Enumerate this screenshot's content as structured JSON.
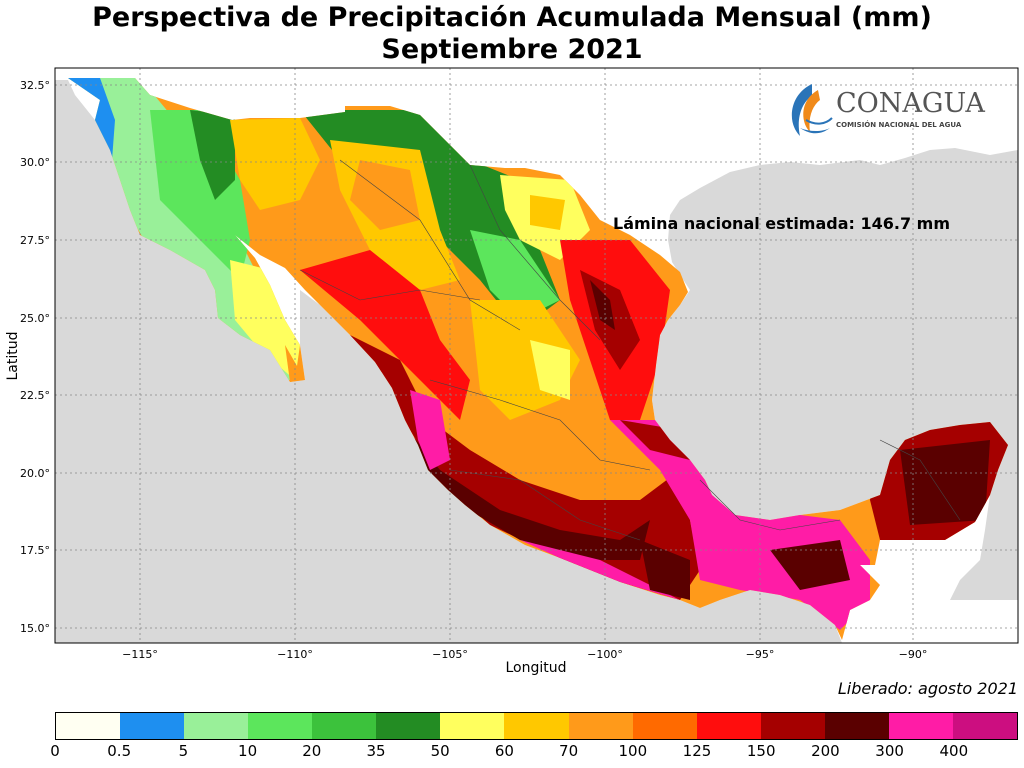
{
  "title_line1": "Perspectiva de Precipitación Acumulada Mensual (mm)",
  "title_line2": "Septiembre 2021",
  "logo": {
    "name": "CONAGUA",
    "subtitle": "COMISIÓN NACIONAL DEL AGUA"
  },
  "annotation": "Lámina nacional estimada: 146.7 mm",
  "released": "Liberado: agosto 2021",
  "axes": {
    "xlabel": "Longitud",
    "ylabel": "Latitud",
    "x_ticks": [
      "−115°",
      "−110°",
      "−105°",
      "−100°",
      "−95°",
      "−90°"
    ],
    "y_ticks": [
      "32.5°",
      "30.0°",
      "27.5°",
      "25.0°",
      "22.5°",
      "20.0°",
      "17.5°",
      "15.0°"
    ]
  },
  "colorbar": {
    "tick_labels": [
      "0",
      "0.5",
      "5",
      "10",
      "20",
      "35",
      "50",
      "60",
      "70",
      "100",
      "125",
      "150",
      "200",
      "300",
      "400"
    ],
    "colors": [
      "#fffff2",
      "#1e8ff0",
      "#99f099",
      "#5ce65c",
      "#3cc23c",
      "#238c23",
      "#ffff5e",
      "#ffc800",
      "#ff9a1a",
      "#ff6a00",
      "#ff0d0d",
      "#a50000",
      "#5a0000",
      "#ff1ca6",
      "#cc0e80"
    ]
  }
}
